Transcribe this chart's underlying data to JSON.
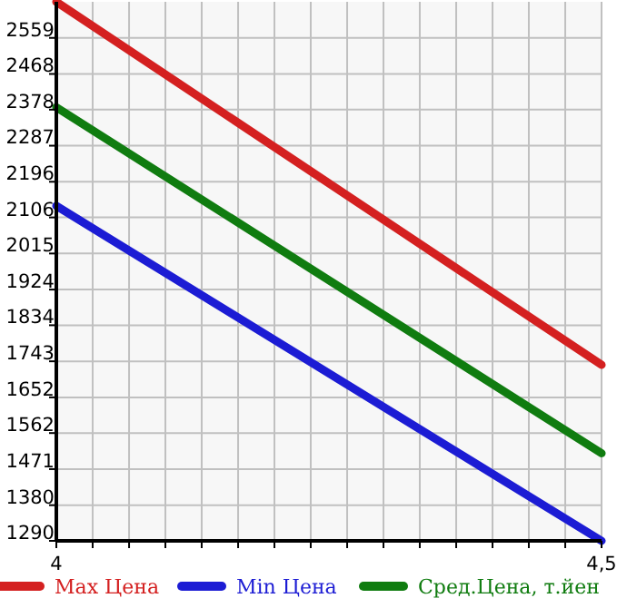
{
  "chart_data": {
    "type": "line",
    "x": [
      4,
      4.5
    ],
    "series": [
      {
        "name": "Max Цена",
        "color": "#d42020",
        "values": [
          2650,
          1734
        ]
      },
      {
        "name": "Min Цена",
        "color": "#1c1cd4",
        "values": [
          2135,
          1290
        ]
      },
      {
        "name": "Сред.Цена, т.йен",
        "color": "#107c10",
        "values": [
          2384,
          1511
        ]
      }
    ],
    "xlim": [
      4,
      4.5
    ],
    "ylim": [
      1290,
      2650
    ],
    "xticks": [
      {
        "value": 4,
        "label": "4"
      },
      {
        "value": 4.0333,
        "label": null
      },
      {
        "value": 4.0667,
        "label": null
      },
      {
        "value": 4.1,
        "label": null
      },
      {
        "value": 4.1333,
        "label": null
      },
      {
        "value": 4.1667,
        "label": null
      },
      {
        "value": 4.2,
        "label": null
      },
      {
        "value": 4.2333,
        "label": null
      },
      {
        "value": 4.2667,
        "label": null
      },
      {
        "value": 4.3,
        "label": null
      },
      {
        "value": 4.3333,
        "label": null
      },
      {
        "value": 4.3667,
        "label": null
      },
      {
        "value": 4.4,
        "label": null
      },
      {
        "value": 4.4333,
        "label": null
      },
      {
        "value": 4.4667,
        "label": null
      },
      {
        "value": 4.5,
        "label": "4,5"
      }
    ],
    "yticks": [
      1290,
      1380,
      1471,
      1562,
      1652,
      1743,
      1834,
      1924,
      2015,
      2106,
      2196,
      2287,
      2378,
      2468,
      2559
    ],
    "grid": true,
    "legend": "bottom",
    "line_style": "solid"
  }
}
